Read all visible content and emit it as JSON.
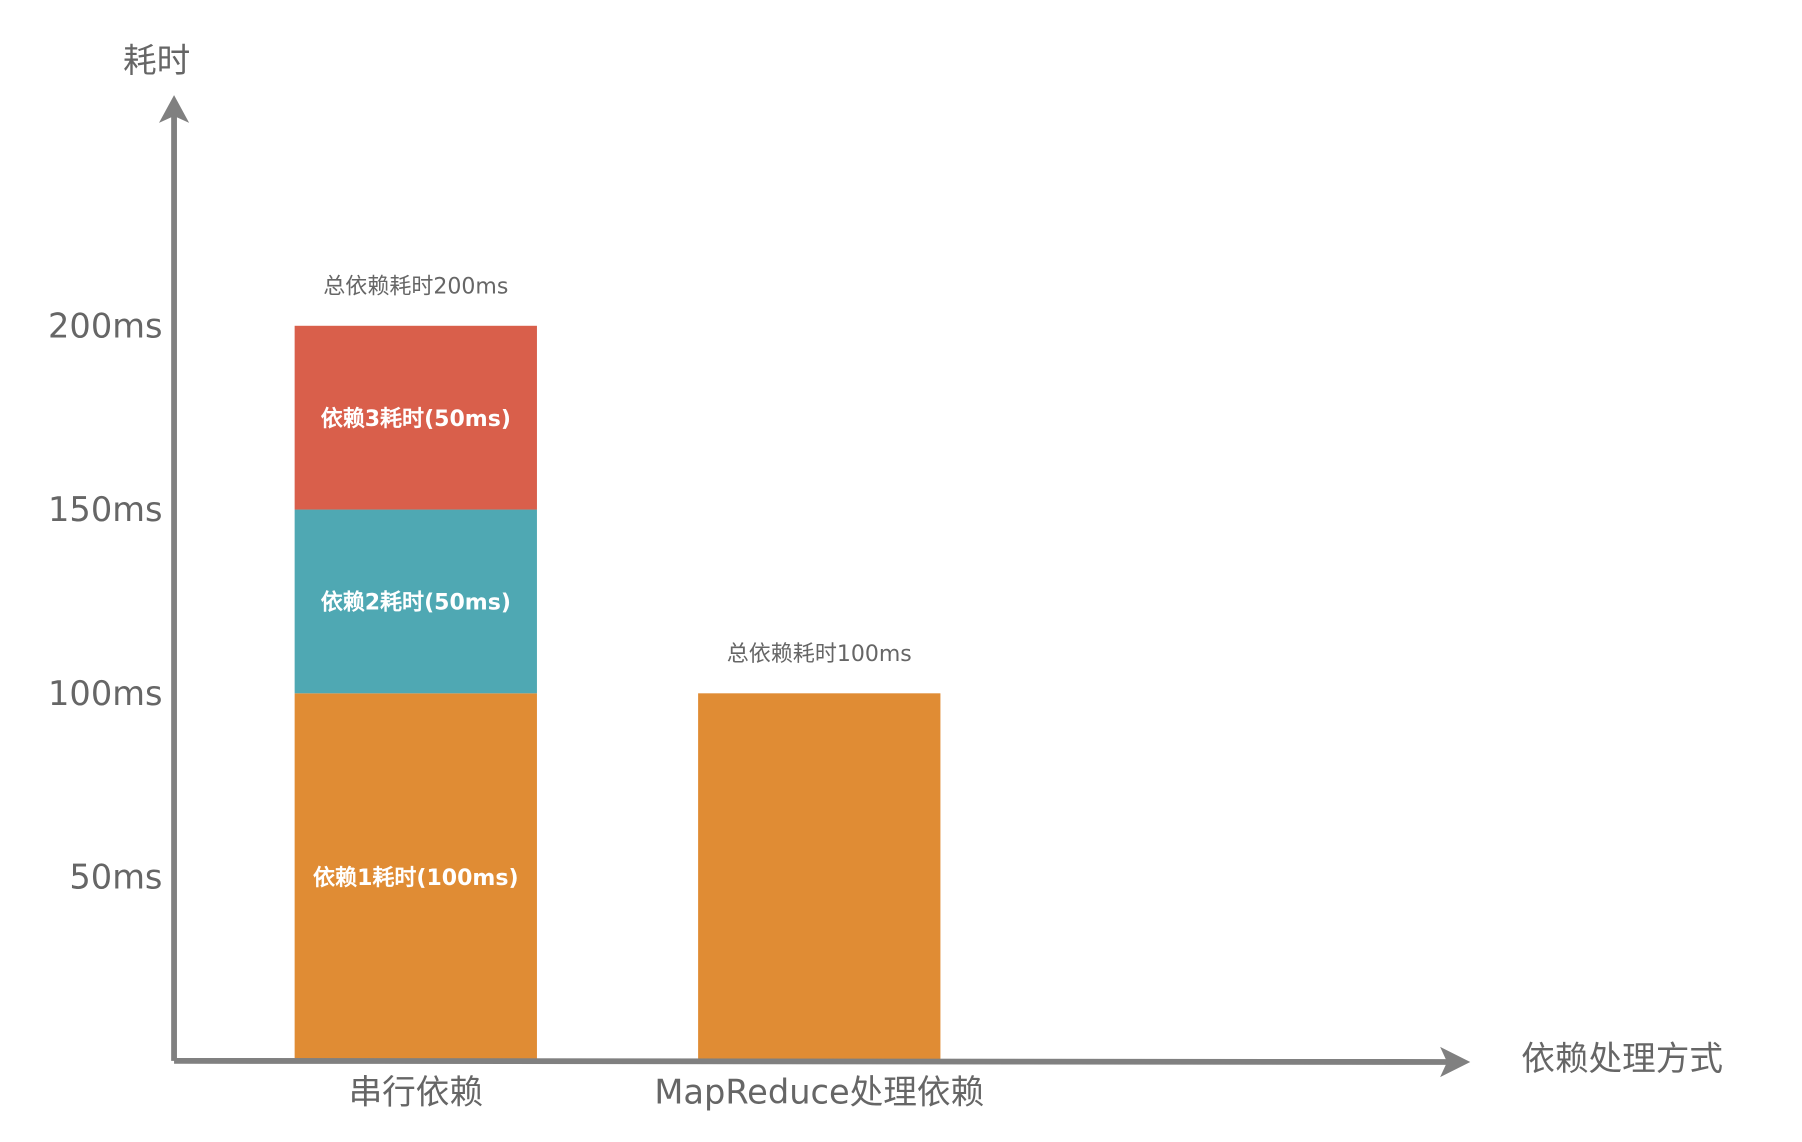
{
  "chart_data": {
    "type": "bar",
    "stacked": true,
    "ylabel": "耗时",
    "xlabel": "依赖处理方式",
    "categories": [
      "串行依赖",
      "MapReduce处理依赖"
    ],
    "yticks": [
      {
        "value": 50,
        "label": "50ms"
      },
      {
        "value": 100,
        "label": "100ms"
      },
      {
        "value": 150,
        "label": "150ms"
      },
      {
        "value": 200,
        "label": "200ms"
      }
    ],
    "ylim": [
      0,
      200
    ],
    "grid": false,
    "bars": [
      {
        "category": "串行依赖",
        "total_label": "总依赖耗时200ms",
        "segments": [
          {
            "value": 100,
            "label": "依赖1耗时(100ms)",
            "color": "#E08C34"
          },
          {
            "value": 50,
            "label": "依赖2耗时(50ms)",
            "color": "#4FA8B3"
          },
          {
            "value": 50,
            "label": "依赖3耗时(50ms)",
            "color": "#D95F4B"
          }
        ]
      },
      {
        "category": "MapReduce处理依赖",
        "total_label": "总依赖耗时100ms",
        "segments": [
          {
            "value": 100,
            "label": "",
            "color": "#E08C34"
          }
        ]
      }
    ],
    "axis_color": "#808080",
    "text_color": "#666666"
  }
}
